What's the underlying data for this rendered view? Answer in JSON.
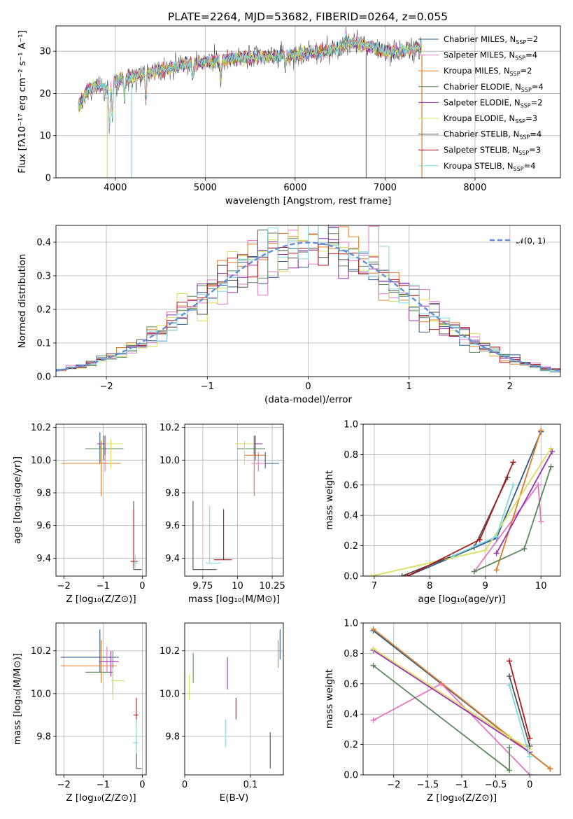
{
  "figure": {
    "title": "PLATE=2264, MJD=53682, FIBERID=0264, z=0.055"
  },
  "series_styles": [
    {
      "name": "Chabrier MILES",
      "color": "#2b5b8c",
      "nssp": "2"
    },
    {
      "name": "Salpeter MILES",
      "color": "#e377c2",
      "nssp": "4"
    },
    {
      "name": "Kroupa MILES",
      "color": "#e07b28",
      "nssp": "2"
    },
    {
      "name": "Chabrier ELODIE",
      "color": "#5a8a5a",
      "nssp": "4"
    },
    {
      "name": "Salpeter ELODIE",
      "color": "#9b30b0",
      "nssp": "2"
    },
    {
      "name": "Kroupa ELODIE",
      "color": "#d8e05a",
      "nssp": "3"
    },
    {
      "name": "Chabrier STELIB",
      "color": "#505050",
      "nssp": "4"
    },
    {
      "name": "Salpeter STELIB",
      "color": "#b01818",
      "nssp": "3"
    },
    {
      "name": "Kroupa STELIB",
      "color": "#80d8e0",
      "nssp": "4"
    }
  ],
  "chart_data": [
    {
      "id": "spectrum",
      "type": "line",
      "xlabel": "wavelength [Angstrom, rest frame]",
      "ylabel": "Flux [fλ10⁻¹⁷ erg cm⁻² s⁻¹ A⁻¹]",
      "xlim": [
        3340,
        8950
      ],
      "ylim": [
        0,
        36
      ],
      "xticks": [
        4000,
        5000,
        6000,
        7000,
        8000
      ],
      "yticks": [
        0,
        10,
        20,
        30
      ],
      "legend": [
        {
          "label": "Chabrier MILES, N",
          "sub": "SSP",
          "suffix": "=2"
        },
        {
          "label": "Salpeter MILES, N",
          "sub": "SSP",
          "suffix": "=4"
        },
        {
          "label": "Kroupa MILES, N",
          "sub": "SSP",
          "suffix": "=2"
        },
        {
          "label": "Chabrier ELODIE, N",
          "sub": "SSP",
          "suffix": "=4"
        },
        {
          "label": "Salpeter ELODIE, N",
          "sub": "SSP",
          "suffix": "=2"
        },
        {
          "label": "Kroupa ELODIE, N",
          "sub": "SSP",
          "suffix": "=3"
        },
        {
          "label": "Chabrier STELIB, N",
          "sub": "SSP",
          "suffix": "=4"
        },
        {
          "label": "Salpeter STELIB, N",
          "sub": "SSP",
          "suffix": "=3"
        },
        {
          "label": "Kroupa STELIB, N",
          "sub": "SSP",
          "suffix": "=4"
        }
      ],
      "continuum_anchors": [
        [
          3600,
          17
        ],
        [
          3700,
          21
        ],
        [
          3800,
          22
        ],
        [
          3900,
          21
        ],
        [
          4000,
          23
        ],
        [
          4200,
          24
        ],
        [
          4500,
          25.5
        ],
        [
          4800,
          27
        ],
        [
          5000,
          27.5
        ],
        [
          5500,
          28.5
        ],
        [
          6000,
          29
        ],
        [
          6500,
          30.5
        ],
        [
          6600,
          32
        ],
        [
          6800,
          31.5
        ],
        [
          7000,
          30
        ],
        [
          7200,
          30
        ],
        [
          7400,
          31
        ],
        [
          7420,
          31
        ]
      ]
    },
    {
      "id": "residuals",
      "type": "histogram",
      "xlabel": "(data-model)/error",
      "ylabel": "Normed distribution",
      "xlim": [
        -2.5,
        2.5
      ],
      "ylim": [
        0,
        0.45
      ],
      "xticks": [
        -2,
        -1,
        0,
        1,
        2
      ],
      "yticks": [
        0.0,
        0.1,
        0.2,
        0.3,
        0.4
      ],
      "reference_label": "𝒩(0, 1)"
    },
    {
      "id": "age_vs_Z",
      "type": "scatter",
      "xlabel": "Z [log₁₀(Z/Z⊙)]",
      "ylabel": "age  [log₁₀(age/yr)]",
      "xlim": [
        -2.2,
        0.1
      ],
      "ylim": [
        9.29,
        10.22
      ],
      "xticks": [
        -2,
        -1,
        0
      ],
      "yticks": [
        9.4,
        9.6,
        9.8,
        10.0,
        10.2
      ],
      "points": [
        {
          "s": 0,
          "x": -1.08,
          "y": 10.08,
          "xe": [
            -1.1,
            -1.05
          ],
          "ye": [
            9.98,
            10.17
          ]
        },
        {
          "s": 1,
          "x": -0.95,
          "y": 9.98,
          "xe": [
            -1.1,
            -0.8
          ],
          "ye": [
            9.93,
            10.08
          ]
        },
        {
          "s": 2,
          "x": -1.05,
          "y": 9.98,
          "xe": [
            -2.08,
            -0.55
          ],
          "ye": [
            9.78,
            10.12
          ]
        },
        {
          "s": 3,
          "x": -0.98,
          "y": 10.07,
          "xe": [
            -1.45,
            -0.48
          ],
          "ye": [
            10.0,
            10.15
          ]
        },
        {
          "s": 4,
          "x": -0.95,
          "y": 10.1,
          "xe": [
            -1.15,
            -0.6
          ],
          "ye": [
            10.03,
            10.15
          ]
        },
        {
          "s": 5,
          "x": -0.8,
          "y": 10.1,
          "xe": [
            -0.95,
            -0.5
          ],
          "ye": [
            9.95,
            10.13
          ]
        },
        {
          "s": 6,
          "x": -0.22,
          "y": 9.33,
          "xe": [
            -0.22,
            -0.02
          ],
          "ye": [
            9.33,
            9.75
          ]
        },
        {
          "s": 7,
          "x": -0.22,
          "y": 9.38,
          "xe": [
            -0.3,
            -0.12
          ],
          "ye": [
            9.35,
            9.7
          ]
        },
        {
          "s": 8,
          "x": -0.18,
          "y": 9.37,
          "xe": [
            -0.25,
            -0.1
          ],
          "ye": [
            9.34,
            9.42
          ]
        }
      ]
    },
    {
      "id": "age_vs_mass",
      "type": "scatter",
      "xlabel": "mass [log₁₀(M/M⊙)]",
      "ylabel": "",
      "xlim": [
        9.62,
        10.33
      ],
      "ylim": [
        9.29,
        10.22
      ],
      "xticks": [
        9.75,
        10.0,
        10.25
      ],
      "yticks": [
        9.4,
        9.6,
        9.8,
        10.0,
        10.2
      ],
      "points": [
        {
          "s": 0,
          "x": 10.2,
          "y": 9.98,
          "xe": [
            10.1,
            10.3
          ],
          "ye": [
            9.95,
            10.05
          ]
        },
        {
          "s": 1,
          "x": 10.15,
          "y": 9.98,
          "xe": [
            10.1,
            10.2
          ],
          "ye": [
            9.93,
            10.05
          ]
        },
        {
          "s": 2,
          "x": 10.12,
          "y": 10.03,
          "xe": [
            10.05,
            10.2
          ],
          "ye": [
            9.78,
            10.15
          ]
        },
        {
          "s": 3,
          "x": 10.13,
          "y": 10.07,
          "xe": [
            10.0,
            10.2
          ],
          "ye": [
            10.0,
            10.15
          ]
        },
        {
          "s": 4,
          "x": 10.12,
          "y": 10.1,
          "xe": [
            10.05,
            10.18
          ],
          "ye": [
            10.03,
            10.15
          ]
        },
        {
          "s": 5,
          "x": 10.05,
          "y": 10.1,
          "xe": [
            9.98,
            10.12
          ],
          "ye": [
            9.97,
            10.12
          ]
        },
        {
          "s": 6,
          "x": 9.68,
          "y": 9.33,
          "xe": [
            9.68,
            9.85
          ],
          "ye": [
            9.33,
            9.75
          ]
        },
        {
          "s": 7,
          "x": 9.9,
          "y": 9.39,
          "xe": [
            9.83,
            9.96
          ],
          "ye": [
            9.39,
            9.7
          ]
        },
        {
          "s": 8,
          "x": 9.8,
          "y": 9.37,
          "xe": [
            9.77,
            9.88
          ],
          "ye": [
            9.37,
            9.72
          ]
        }
      ]
    },
    {
      "id": "mass_weight_vs_age",
      "type": "line",
      "xlabel": "age  [log₁₀(age/yr)]",
      "ylabel": "mass weight",
      "xlim": [
        6.8,
        10.35
      ],
      "ylim": [
        0,
        1
      ],
      "xticks": [
        7,
        8,
        9,
        10
      ],
      "yticks": [
        0.0,
        0.2,
        0.4,
        0.6,
        0.8,
        1.0
      ],
      "series": [
        {
          "s": 0,
          "x": [
            7.6,
            9.2,
            10.0
          ],
          "y": [
            0.0,
            0.25,
            0.95
          ]
        },
        {
          "s": 1,
          "x": [
            8.8,
            9.95,
            10.0
          ],
          "y": [
            0.03,
            0.6,
            0.36
          ]
        },
        {
          "s": 2,
          "x": [
            9.2,
            10.0
          ],
          "y": [
            0.04,
            0.96
          ]
        },
        {
          "s": 3,
          "x": [
            8.8,
            9.7,
            10.18
          ],
          "y": [
            0.03,
            0.18,
            0.72
          ]
        },
        {
          "s": 4,
          "x": [
            9.2,
            10.2
          ],
          "y": [
            0.15,
            0.82
          ]
        },
        {
          "s": 5,
          "x": [
            6.95,
            9.0,
            10.18
          ],
          "y": [
            0.0,
            0.17,
            0.84
          ]
        },
        {
          "s": 6,
          "x": [
            7.5,
            8.8,
            9.4
          ],
          "y": [
            0.0,
            0.19,
            0.65
          ]
        },
        {
          "s": 7,
          "x": [
            7.6,
            8.9,
            9.5
          ],
          "y": [
            0.0,
            0.24,
            0.75
          ]
        },
        {
          "s": 8,
          "x": [
            8.4,
            9.2,
            9.5
          ],
          "y": [
            0.13,
            0.26,
            0.6
          ]
        }
      ]
    },
    {
      "id": "mass_vs_Z",
      "type": "scatter",
      "xlabel": "Z [log₁₀(Z/Z⊙)]",
      "ylabel": "mass [log₁₀(M/M⊙)]",
      "xlim": [
        -2.2,
        0.1
      ],
      "ylim": [
        9.62,
        10.33
      ],
      "xticks": [
        -2,
        -1,
        0
      ],
      "yticks": [
        9.8,
        10.0,
        10.2
      ],
      "points": [
        {
          "s": 0,
          "x": -1.08,
          "y": 10.17,
          "xe": [
            -2.08,
            -0.6
          ],
          "ye": [
            10.1,
            10.3
          ]
        },
        {
          "s": 1,
          "x": -0.9,
          "y": 10.15,
          "xe": [
            -1.1,
            -0.65
          ],
          "ye": [
            10.1,
            10.22
          ]
        },
        {
          "s": 2,
          "x": -1.05,
          "y": 10.13,
          "xe": [
            -2.08,
            -0.65
          ],
          "ye": [
            10.05,
            10.25
          ]
        },
        {
          "s": 3,
          "x": -0.75,
          "y": 10.1,
          "xe": [
            -1.45,
            -0.75
          ],
          "ye": [
            10.0,
            10.2
          ]
        },
        {
          "s": 4,
          "x": -0.8,
          "y": 10.15,
          "xe": [
            -1.1,
            -0.6
          ],
          "ye": [
            10.08,
            10.2
          ]
        },
        {
          "s": 5,
          "x": -0.75,
          "y": 10.06,
          "xe": [
            -0.8,
            -0.45
          ],
          "ye": [
            9.97,
            10.12
          ]
        },
        {
          "s": 6,
          "x": -0.15,
          "y": 9.65,
          "xe": [
            -0.15,
            -0.02
          ],
          "ye": [
            9.65,
            9.82
          ]
        },
        {
          "s": 7,
          "x": -0.15,
          "y": 9.9,
          "xe": [
            -0.22,
            -0.1
          ],
          "ye": [
            9.85,
            9.98
          ]
        },
        {
          "s": 8,
          "x": -0.15,
          "y": 9.77,
          "xe": [
            -0.25,
            -0.1
          ],
          "ye": [
            9.72,
            9.88
          ]
        }
      ]
    },
    {
      "id": "mass_vs_EBV",
      "type": "scatter",
      "xlabel": "E(B-V)",
      "ylabel": "",
      "xlim": [
        0.0,
        0.15
      ],
      "ylim": [
        9.62,
        10.33
      ],
      "xticks": [
        0.0,
        0.1
      ],
      "yticks": [
        9.8,
        10.0,
        10.2
      ],
      "points": [
        {
          "s": 0,
          "x": 0.145,
          "y": 10.22,
          "ye": [
            10.16,
            10.3
          ]
        },
        {
          "s": 2,
          "x": 0.142,
          "y": 10.19,
          "ye": [
            10.12,
            10.25
          ]
        },
        {
          "s": 3,
          "x": 0.013,
          "y": 10.12,
          "ye": [
            10.05,
            10.19
          ]
        },
        {
          "s": 4,
          "x": 0.065,
          "y": 10.09,
          "ye": [
            10.02,
            10.17
          ]
        },
        {
          "s": 5,
          "x": 0.007,
          "y": 10.03,
          "ye": [
            9.97,
            10.09
          ]
        },
        {
          "s": 6,
          "x": 0.13,
          "y": 9.74,
          "ye": [
            9.65,
            9.82
          ]
        },
        {
          "s": 7,
          "x": 0.078,
          "y": 9.93,
          "ye": [
            9.88,
            9.98
          ]
        },
        {
          "s": 8,
          "x": 0.062,
          "y": 9.8,
          "ye": [
            9.75,
            9.88
          ]
        }
      ]
    },
    {
      "id": "mass_weight_vs_Z",
      "type": "line",
      "xlabel": "Z [log₁₀(Z/Z⊙)]",
      "ylabel": "mass weight",
      "xlim": [
        -2.45,
        0.45
      ],
      "ylim": [
        0,
        1
      ],
      "xticks": [
        -2.0,
        -1.5,
        -1.0,
        -0.5,
        0.0
      ],
      "yticks": [
        0.0,
        0.2,
        0.4,
        0.6,
        0.8,
        1.0
      ],
      "series": [
        {
          "s": 0,
          "x": [
            -2.3,
            0.3
          ],
          "y": [
            0.95,
            0.04
          ]
        },
        {
          "s": 1,
          "x": [
            -2.3,
            -1.3,
            0.0
          ],
          "y": [
            0.36,
            0.6,
            0.0
          ]
        },
        {
          "s": 2,
          "x": [
            -2.3,
            0.3
          ],
          "y": [
            0.96,
            0.04
          ]
        },
        {
          "s": 3,
          "x": [
            -2.3,
            -0.3,
            -0.3
          ],
          "y": [
            0.72,
            0.03,
            0.18
          ]
        },
        {
          "s": 4,
          "x": [
            -2.3,
            0.0
          ],
          "y": [
            0.82,
            0.15
          ]
        },
        {
          "s": 5,
          "x": [
            -2.3,
            -0.3,
            0.0
          ],
          "y": [
            0.83,
            0.25,
            0.17
          ]
        },
        {
          "s": 6,
          "x": [
            -0.3,
            0.0
          ],
          "y": [
            0.65,
            0.19
          ]
        },
        {
          "s": 7,
          "x": [
            -0.3,
            0.0
          ],
          "y": [
            0.75,
            0.24
          ]
        },
        {
          "s": 8,
          "x": [
            -0.3,
            0.0
          ],
          "y": [
            0.59,
            0.12
          ]
        }
      ]
    }
  ]
}
